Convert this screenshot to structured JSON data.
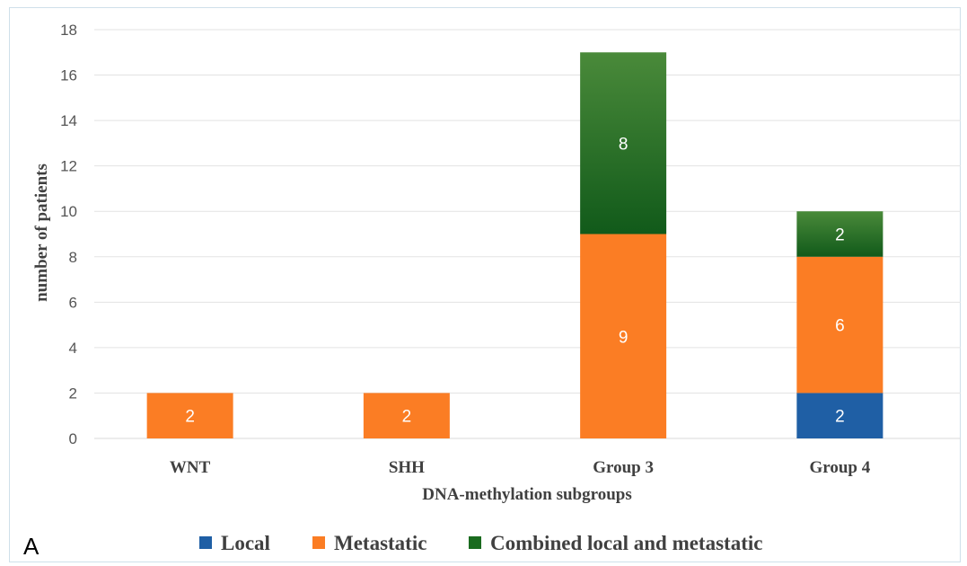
{
  "panel_label": "A",
  "chart_data": {
    "type": "bar",
    "stacked": true,
    "categories": [
      "WNT",
      "SHH",
      "Group 3",
      "Group 4"
    ],
    "series": [
      {
        "name": "Local",
        "color": "#1f5fa5",
        "values": [
          0,
          0,
          0,
          2
        ]
      },
      {
        "name": "Metastatic",
        "color": "#fb7d24",
        "values": [
          2,
          2,
          9,
          6
        ]
      },
      {
        "name": "Combined local and metastatic",
        "color": "#1a6b1f",
        "values": [
          0,
          0,
          8,
          2
        ]
      }
    ],
    "xlabel": "DNA-methylation subgroups",
    "ylabel": "number of patients",
    "ylim": [
      0,
      18
    ],
    "yticks": [
      0,
      2,
      4,
      6,
      8,
      10,
      12,
      14,
      16,
      18
    ],
    "grid": true,
    "legend_position": "bottom"
  }
}
